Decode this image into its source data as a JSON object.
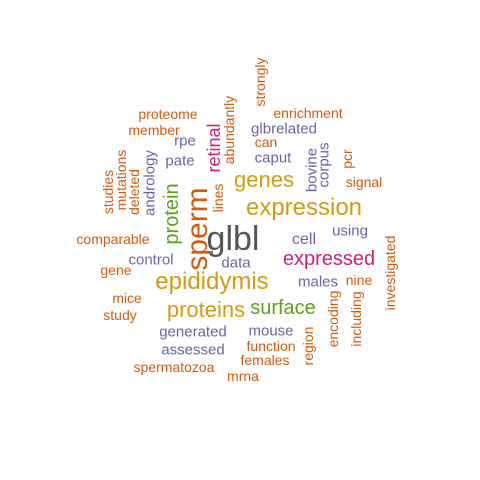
{
  "palette": {
    "gray": "#555555",
    "orange": "#d45a10",
    "gold": "#d49a10",
    "purple": "#6b63a8",
    "magenta": "#d41f78",
    "green": "#5e9e1e"
  },
  "words": [
    {
      "id": "glbl",
      "text": "glbl",
      "color": "gray",
      "weight": 10
    },
    {
      "id": "sperm",
      "text": "sperm",
      "color": "orange",
      "weight": 8
    },
    {
      "id": "expression",
      "text": "expression",
      "color": "gold",
      "weight": 7
    },
    {
      "id": "epididymis",
      "text": "epididymis",
      "color": "gold",
      "weight": 7
    },
    {
      "id": "proteins",
      "text": "proteins",
      "color": "gold",
      "weight": 6
    },
    {
      "id": "surface",
      "text": "surface",
      "color": "green",
      "weight": 5
    },
    {
      "id": "expressed",
      "text": "expressed",
      "color": "magenta",
      "weight": 5
    },
    {
      "id": "genes",
      "text": "genes",
      "color": "gold",
      "weight": 5
    },
    {
      "id": "protein",
      "text": "protein",
      "color": "green",
      "weight": 5
    },
    {
      "id": "retinal",
      "text": "retinal",
      "color": "magenta",
      "weight": 4
    },
    {
      "id": "cell",
      "text": "cell",
      "color": "purple",
      "weight": 3
    },
    {
      "id": "using",
      "text": "using",
      "color": "purple",
      "weight": 3
    },
    {
      "id": "males",
      "text": "males",
      "color": "purple",
      "weight": 3
    },
    {
      "id": "mouse",
      "text": "mouse",
      "color": "purple",
      "weight": 3
    },
    {
      "id": "generated",
      "text": "generated",
      "color": "purple",
      "weight": 3
    },
    {
      "id": "assessed",
      "text": "assessed",
      "color": "purple",
      "weight": 3
    },
    {
      "id": "control",
      "text": "control",
      "color": "purple",
      "weight": 3
    },
    {
      "id": "data",
      "text": "data",
      "color": "purple",
      "weight": 3
    },
    {
      "id": "caput",
      "text": "caput",
      "color": "purple",
      "weight": 3
    },
    {
      "id": "pate",
      "text": "pate",
      "color": "purple",
      "weight": 3
    },
    {
      "id": "rpe",
      "text": "rpe",
      "color": "purple",
      "weight": 3
    },
    {
      "id": "glbrelated",
      "text": "glbrelated",
      "color": "purple",
      "weight": 3
    },
    {
      "id": "bovine",
      "text": "bovine",
      "color": "purple",
      "weight": 3
    },
    {
      "id": "corpus",
      "text": "corpus",
      "color": "purple",
      "weight": 3
    },
    {
      "id": "andrology",
      "text": "andrology",
      "color": "purple",
      "weight": 3
    },
    {
      "id": "proteome",
      "text": "proteome",
      "color": "orange",
      "weight": 2
    },
    {
      "id": "member",
      "text": "member",
      "color": "orange",
      "weight": 2
    },
    {
      "id": "enrichment",
      "text": "enrichment",
      "color": "orange",
      "weight": 2
    },
    {
      "id": "can",
      "text": "can",
      "color": "orange",
      "weight": 2
    },
    {
      "id": "signal",
      "text": "signal",
      "color": "orange",
      "weight": 2
    },
    {
      "id": "pcr",
      "text": "pcr",
      "color": "orange",
      "weight": 2
    },
    {
      "id": "comparable",
      "text": "comparable",
      "color": "orange",
      "weight": 2
    },
    {
      "id": "gene",
      "text": "gene",
      "color": "orange",
      "weight": 2
    },
    {
      "id": "mice",
      "text": "mice",
      "color": "orange",
      "weight": 2
    },
    {
      "id": "study",
      "text": "study",
      "color": "orange",
      "weight": 2
    },
    {
      "id": "nine",
      "text": "nine",
      "color": "orange",
      "weight": 2
    },
    {
      "id": "function",
      "text": "function",
      "color": "orange",
      "weight": 2
    },
    {
      "id": "females",
      "text": "females",
      "color": "orange",
      "weight": 2
    },
    {
      "id": "spermatozoa",
      "text": "spermatozoa",
      "color": "orange",
      "weight": 2
    },
    {
      "id": "mrna",
      "text": "mrna",
      "color": "orange",
      "weight": 2
    },
    {
      "id": "region",
      "text": "region",
      "color": "orange",
      "weight": 2
    },
    {
      "id": "encoding",
      "text": "encoding",
      "color": "orange",
      "weight": 2
    },
    {
      "id": "including",
      "text": "including",
      "color": "orange",
      "weight": 2
    },
    {
      "id": "investigated",
      "text": "investigated",
      "color": "orange",
      "weight": 2
    },
    {
      "id": "studies",
      "text": "studies",
      "color": "orange",
      "weight": 2
    },
    {
      "id": "mutations",
      "text": "mutations",
      "color": "orange",
      "weight": 2
    },
    {
      "id": "deleted",
      "text": "deleted",
      "color": "orange",
      "weight": 2
    },
    {
      "id": "lines",
      "text": "lines",
      "color": "orange",
      "weight": 2
    },
    {
      "id": "abundantly",
      "text": "abundantly",
      "color": "orange",
      "weight": 2
    },
    {
      "id": "strongly",
      "text": "strongly",
      "color": "orange",
      "weight": 2
    }
  ]
}
